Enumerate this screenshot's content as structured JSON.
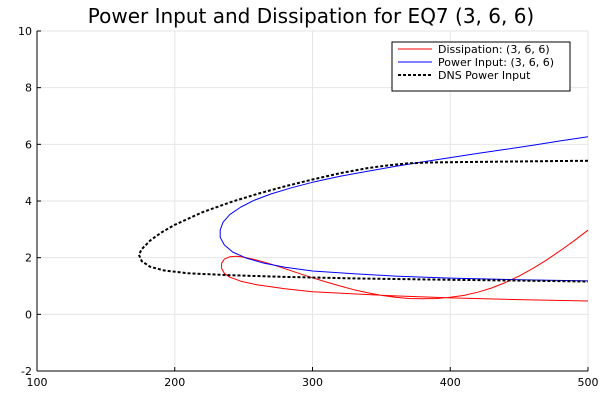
{
  "chart_data": {
    "type": "line",
    "title": "Power Input and Dissipation for EQ7 (3, 6, 6)",
    "xlabel": "",
    "ylabel": "",
    "xlim": [
      100,
      500
    ],
    "ylim": [
      -2,
      10
    ],
    "xticks": [
      100,
      200,
      300,
      400,
      500
    ],
    "yticks": [
      -2,
      0,
      2,
      4,
      6,
      8,
      10
    ],
    "grid": true,
    "legend_position": "top-right",
    "series": [
      {
        "name": "Dissipation: (3, 6, 6)",
        "color": "#ff0000",
        "style": "solid",
        "points": [
          [
            500,
            2.97
          ],
          [
            490,
            2.6
          ],
          [
            480,
            2.25
          ],
          [
            470,
            1.92
          ],
          [
            460,
            1.62
          ],
          [
            450,
            1.35
          ],
          [
            440,
            1.12
          ],
          [
            430,
            0.93
          ],
          [
            420,
            0.78
          ],
          [
            410,
            0.67
          ],
          [
            400,
            0.6
          ],
          [
            390,
            0.56
          ],
          [
            380,
            0.55
          ],
          [
            370,
            0.56
          ],
          [
            360,
            0.6
          ],
          [
            350,
            0.67
          ],
          [
            340,
            0.76
          ],
          [
            330,
            0.87
          ],
          [
            320,
            1.0
          ],
          [
            310,
            1.14
          ],
          [
            300,
            1.29
          ],
          [
            290,
            1.45
          ],
          [
            280,
            1.61
          ],
          [
            270,
            1.77
          ],
          [
            260,
            1.91
          ],
          [
            250,
            2.02
          ],
          [
            245,
            2.05
          ],
          [
            240,
            2.03
          ],
          [
            236,
            1.95
          ],
          [
            234,
            1.8
          ],
          [
            234,
            1.62
          ],
          [
            236,
            1.45
          ],
          [
            240,
            1.31
          ],
          [
            248,
            1.17
          ],
          [
            260,
            1.04
          ],
          [
            280,
            0.9
          ],
          [
            300,
            0.8
          ],
          [
            330,
            0.72
          ],
          [
            360,
            0.65
          ],
          [
            400,
            0.58
          ],
          [
            450,
            0.52
          ],
          [
            500,
            0.47
          ]
        ]
      },
      {
        "name": "Power Input: (3, 6, 6)",
        "color": "#0000ff",
        "style": "solid",
        "points": [
          [
            500,
            6.27
          ],
          [
            480,
            6.12
          ],
          [
            460,
            5.97
          ],
          [
            440,
            5.82
          ],
          [
            420,
            5.68
          ],
          [
            400,
            5.53
          ],
          [
            380,
            5.38
          ],
          [
            360,
            5.22
          ],
          [
            340,
            5.05
          ],
          [
            320,
            4.87
          ],
          [
            300,
            4.66
          ],
          [
            285,
            4.47
          ],
          [
            270,
            4.25
          ],
          [
            258,
            4.03
          ],
          [
            248,
            3.79
          ],
          [
            240,
            3.52
          ],
          [
            235,
            3.25
          ],
          [
            233,
            2.98
          ],
          [
            233,
            2.72
          ],
          [
            236,
            2.45
          ],
          [
            242,
            2.2
          ],
          [
            252,
            1.98
          ],
          [
            265,
            1.8
          ],
          [
            280,
            1.66
          ],
          [
            300,
            1.53
          ],
          [
            330,
            1.43
          ],
          [
            360,
            1.35
          ],
          [
            400,
            1.28
          ],
          [
            450,
            1.22
          ],
          [
            500,
            1.18
          ]
        ]
      },
      {
        "name": "DNS Power Input",
        "color": "#000000",
        "style": "dashed",
        "points": [
          [
            500,
            5.42
          ],
          [
            480,
            5.41
          ],
          [
            460,
            5.4
          ],
          [
            440,
            5.39
          ],
          [
            420,
            5.38
          ],
          [
            400,
            5.37
          ],
          [
            385,
            5.36
          ],
          [
            370,
            5.33
          ],
          [
            355,
            5.26
          ],
          [
            340,
            5.16
          ],
          [
            320,
            4.98
          ],
          [
            300,
            4.76
          ],
          [
            280,
            4.52
          ],
          [
            260,
            4.25
          ],
          [
            240,
            3.95
          ],
          [
            220,
            3.6
          ],
          [
            200,
            3.16
          ],
          [
            190,
            2.88
          ],
          [
            182,
            2.6
          ],
          [
            176,
            2.3
          ],
          [
            174,
            2.1
          ],
          [
            176,
            1.88
          ],
          [
            182,
            1.68
          ],
          [
            192,
            1.55
          ],
          [
            210,
            1.45
          ],
          [
            240,
            1.38
          ],
          [
            280,
            1.32
          ],
          [
            330,
            1.27
          ],
          [
            400,
            1.22
          ],
          [
            450,
            1.19
          ],
          [
            500,
            1.16
          ]
        ]
      }
    ]
  }
}
